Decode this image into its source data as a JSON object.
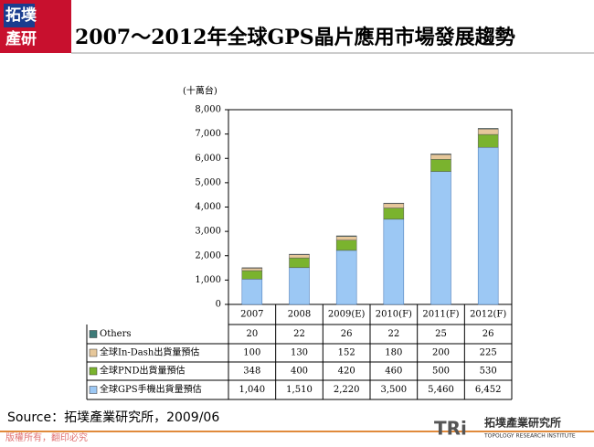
{
  "chart_data": {
    "type": "stacked-bar",
    "title": "2007～2012年全球GPS晶片應用市場發展趨勢",
    "y_unit": "(十萬台)",
    "categories": [
      "2007",
      "2008",
      "2009(E)",
      "2010(F)",
      "2011(F)",
      "2012(F)"
    ],
    "series": [
      {
        "name": "全球GPS手機出貨量預估",
        "color": "#9cc8f4",
        "values": [
          1040,
          1510,
          2220,
          3500,
          5460,
          6452
        ],
        "value_labels": [
          "1,040",
          "1,510",
          "2,220",
          "3,500",
          "5,460",
          "6,452"
        ]
      },
      {
        "name": "全球PND出貨量預估",
        "color": "#7ab32e",
        "values": [
          348,
          400,
          420,
          460,
          500,
          530
        ]
      },
      {
        "name": "全球In-Dash出貨量預估",
        "color": "#e6c79a",
        "values": [
          100,
          130,
          152,
          180,
          200,
          225
        ]
      },
      {
        "name": "Others",
        "color": "#3d7a78",
        "values": [
          20,
          22,
          26,
          22,
          25,
          26
        ]
      }
    ],
    "ylim": [
      0,
      8000
    ],
    "yticks": [
      0,
      {
        "value": 1000,
        "label": "1,000"
      },
      {
        "value": 2000,
        "label": "2,000"
      },
      {
        "value": 3000,
        "label": "3,000"
      },
      {
        "value": 4000,
        "label": "4,000"
      },
      {
        "value": 5000,
        "label": "5,000"
      },
      {
        "value": 6000,
        "label": "6,000"
      },
      {
        "value": 7000,
        "label": "7,000"
      },
      {
        "value": 8000,
        "label": "8,000"
      }
    ]
  },
  "page": {
    "logo": [
      "拓墣",
      "產研"
    ],
    "source": "Source：拓墣產業研究所，2009/06",
    "footer": "版權所有，翻印必究",
    "brand_mark": "TRi",
    "brand": "拓墣產業研究所",
    "brand_sub": "TOPOLOGY RESEARCH INSTITUTE"
  }
}
